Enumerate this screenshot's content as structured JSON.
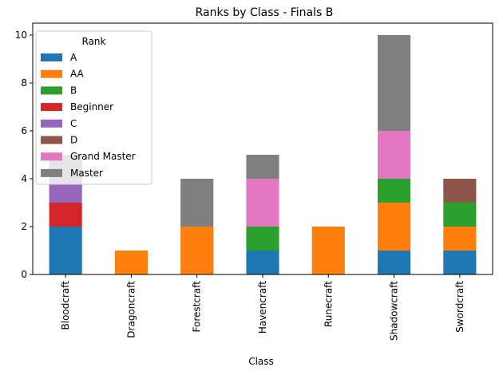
{
  "chart_data": {
    "type": "bar",
    "stacked": true,
    "title": "Ranks by Class - Finals B",
    "xlabel": "Class",
    "ylabel": "",
    "ylim": [
      0,
      10.5
    ],
    "yticks": [
      0,
      2,
      4,
      6,
      8,
      10
    ],
    "categories": [
      "Bloodcraft",
      "Dragoncraft",
      "Forestcraft",
      "Havencraft",
      "Runecraft",
      "Shadowcraft",
      "Swordcraft"
    ],
    "legend_title": "Rank",
    "legend_position": "top-left",
    "grid": false,
    "series": [
      {
        "name": "A",
        "color": "#1f77b4",
        "values": [
          2,
          0,
          0,
          1,
          0,
          1,
          1
        ]
      },
      {
        "name": "AA",
        "color": "#ff7f0e",
        "values": [
          0,
          1,
          2,
          0,
          2,
          2,
          1
        ]
      },
      {
        "name": "B",
        "color": "#2ca02c",
        "values": [
          0,
          0,
          0,
          1,
          0,
          1,
          1
        ]
      },
      {
        "name": "Beginner",
        "color": "#d62728",
        "values": [
          1,
          0,
          0,
          0,
          0,
          0,
          0
        ]
      },
      {
        "name": "C",
        "color": "#9467bd",
        "values": [
          1,
          0,
          0,
          0,
          0,
          0,
          0
        ]
      },
      {
        "name": "D",
        "color": "#8c564b",
        "values": [
          0,
          0,
          0,
          0,
          0,
          0,
          1
        ]
      },
      {
        "name": "Grand Master",
        "color": "#e377c2",
        "values": [
          0,
          0,
          0,
          2,
          0,
          2,
          0
        ]
      },
      {
        "name": "Master",
        "color": "#7f7f7f",
        "values": [
          1,
          0,
          2,
          1,
          0,
          4,
          0
        ]
      }
    ]
  }
}
